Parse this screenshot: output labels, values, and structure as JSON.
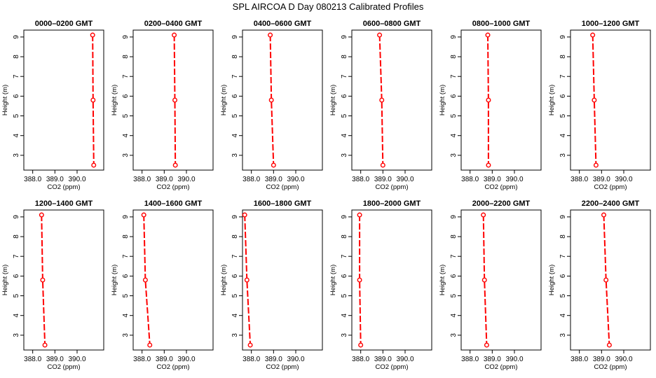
{
  "title": "SPL AIRCOA D  Day 080213  Calibrated Profiles",
  "colors": {
    "series": "#ff0000",
    "axis": "#000000"
  },
  "chart_data": {
    "type": "line",
    "layout": "2 rows x 6 columns of panels",
    "xlabel": "CO2 (ppm)",
    "ylabel": "Height (m)",
    "xlim": [
      387.6,
      391.2
    ],
    "ylim": [
      2.25,
      9.35
    ],
    "xticks": [
      388.0,
      389.0,
      390.0
    ],
    "xtick_labels": [
      "388.0",
      "389.0",
      "390.0"
    ],
    "yticks": [
      3,
      4,
      5,
      6,
      7,
      8,
      9
    ],
    "ytick_labels": [
      "3",
      "4",
      "5",
      "6",
      "7",
      "8",
      "9"
    ],
    "heights": [
      9.1,
      5.8,
      2.5
    ],
    "marker": "open circle",
    "line_style": "dashed",
    "grid": false,
    "panels": [
      {
        "title": "0000–0200 GMT",
        "co2": [
          390.7,
          390.72,
          390.75
        ]
      },
      {
        "title": "0200–0400 GMT",
        "co2": [
          389.45,
          389.48,
          389.5
        ]
      },
      {
        "title": "0400–0600 GMT",
        "co2": [
          388.85,
          388.9,
          389.0
        ]
      },
      {
        "title": "0600–0800 GMT",
        "co2": [
          388.85,
          388.95,
          389.0
        ]
      },
      {
        "title": "0800–1000 GMT",
        "co2": [
          388.8,
          388.83,
          388.83
        ]
      },
      {
        "title": "1000–1200 GMT",
        "co2": [
          388.6,
          388.67,
          388.75
        ]
      },
      {
        "title": "1200–1400 GMT",
        "co2": [
          388.4,
          388.45,
          388.55
        ]
      },
      {
        "title": "1400–1600 GMT",
        "co2": [
          388.08,
          388.15,
          388.35
        ]
      },
      {
        "title": "1600–1800 GMT",
        "co2": [
          387.7,
          387.8,
          387.95
        ]
      },
      {
        "title": "1800–2000 GMT",
        "co2": [
          387.95,
          387.95,
          388.0
        ]
      },
      {
        "title": "2000–2200 GMT",
        "co2": [
          388.6,
          388.65,
          388.75
        ]
      },
      {
        "title": "2200–2400 GMT",
        "co2": [
          389.1,
          389.2,
          389.35
        ]
      }
    ]
  }
}
